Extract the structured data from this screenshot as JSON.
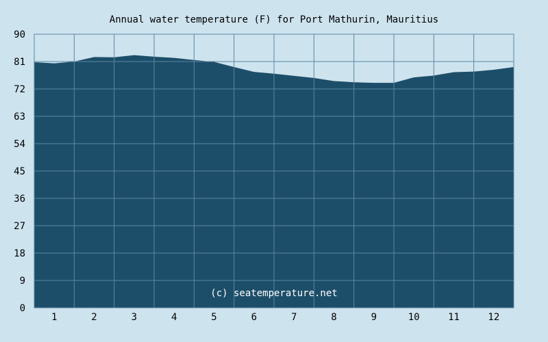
{
  "chart_data": {
    "type": "area",
    "title": "Annual water temperature (F) for Port Mathurin, Mauritius",
    "xlabel": "",
    "ylabel": "",
    "categories": [
      "1",
      "2",
      "3",
      "4",
      "5",
      "6",
      "7",
      "8",
      "9",
      "10",
      "11",
      "12"
    ],
    "yticks": [
      "0",
      "9",
      "18",
      "27",
      "36",
      "45",
      "54",
      "63",
      "72",
      "81",
      "90"
    ],
    "ylim": [
      0,
      90
    ],
    "xlim": [
      0.5,
      12.5
    ],
    "grid": true,
    "watermark": "(c) seatemperature.net",
    "colors": {
      "background": "#cde3ee",
      "area": "#1d4e69",
      "grid": "#5c86a1",
      "frame": "#5c86a1"
    },
    "series": [
      {
        "x": [
          0.5,
          1.0,
          1.5,
          2.0,
          2.5,
          3.0,
          3.5,
          4.0,
          4.5,
          5.0,
          5.5,
          6.0,
          6.5,
          7.0,
          7.5,
          8.0,
          8.5,
          9.0,
          9.5,
          10.0,
          10.5,
          11.0,
          11.5,
          12.0,
          12.5
        ],
        "values": [
          80.8,
          80.4,
          81.0,
          82.5,
          82.4,
          83.1,
          82.6,
          82.2,
          81.5,
          80.9,
          79.2,
          77.6,
          77.0,
          76.3,
          75.6,
          74.6,
          74.2,
          74.0,
          74.0,
          75.8,
          76.4,
          77.5,
          77.7,
          78.3,
          79.2
        ]
      }
    ]
  }
}
